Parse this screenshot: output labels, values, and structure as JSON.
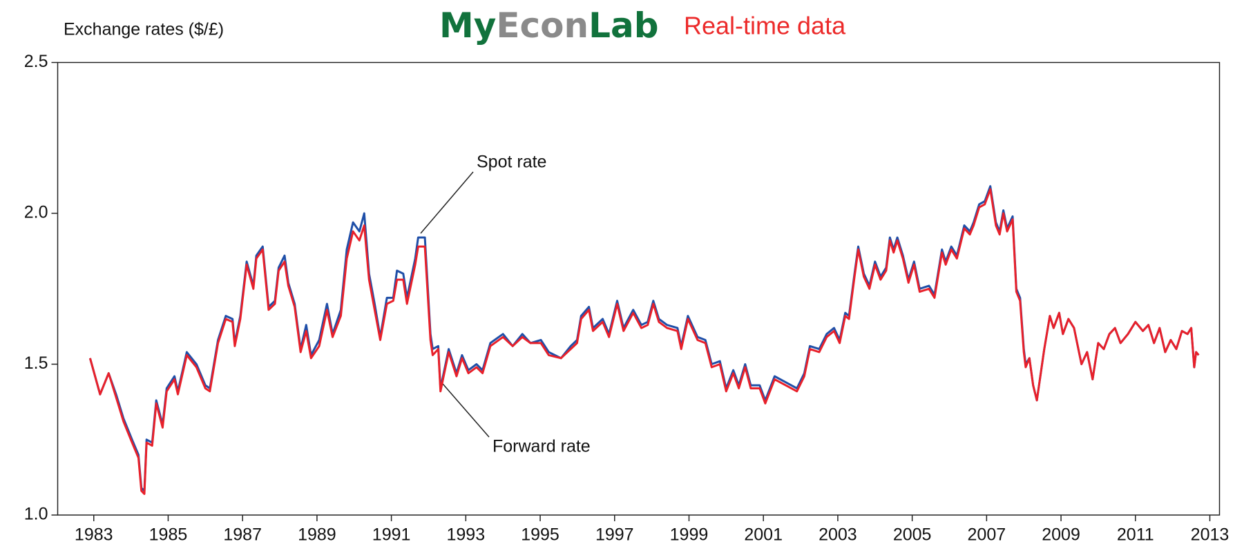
{
  "logo": {
    "parts": [
      "My",
      "Econ",
      "Lab"
    ],
    "tagline": "Real-time data"
  },
  "chart_data": {
    "type": "line",
    "title": "Exchange rates ($/£)",
    "annotations": [
      "Spot rate",
      "Forward rate"
    ],
    "xlim": [
      1982.03,
      2013.26
    ],
    "xticks": [
      1983,
      1985,
      1987,
      1989,
      1991,
      1993,
      1995,
      1997,
      1999,
      2001,
      2003,
      2005,
      2007,
      2009,
      2011,
      2013
    ],
    "ylim": [
      1.0,
      2.5
    ],
    "yticks": [
      {
        "value": 1.0,
        "label": "1.0"
      },
      1.5,
      {
        "value": 2.0,
        "label": "2.0"
      },
      2.5
    ],
    "grid": false,
    "x": [
      1982.9,
      1983.17,
      1983.4,
      1983.6,
      1983.8,
      1984.03,
      1984.2,
      1984.28,
      1984.36,
      1984.42,
      1984.57,
      1984.68,
      1984.85,
      1984.96,
      1985.17,
      1985.26,
      1985.5,
      1985.76,
      1986.0,
      1986.12,
      1986.34,
      1986.55,
      1986.73,
      1986.79,
      1986.94,
      1987.11,
      1987.29,
      1987.37,
      1987.54,
      1987.7,
      1987.87,
      1987.97,
      1988.13,
      1988.23,
      1988.4,
      1988.56,
      1988.71,
      1988.84,
      1989.06,
      1989.27,
      1989.42,
      1989.64,
      1989.8,
      1989.97,
      1990.14,
      1990.27,
      1990.4,
      1990.55,
      1990.7,
      1990.88,
      1991.05,
      1991.15,
      1991.32,
      1991.42,
      1991.64,
      1991.72,
      1991.9,
      1992.05,
      1992.11,
      1992.26,
      1992.32,
      1992.54,
      1992.75,
      1992.9,
      1993.07,
      1993.29,
      1993.45,
      1993.66,
      1994.0,
      1994.26,
      1994.52,
      1994.74,
      1995.02,
      1995.23,
      1995.56,
      1995.82,
      1995.99,
      1996.1,
      1996.31,
      1996.42,
      1996.68,
      1996.85,
      1997.07,
      1997.24,
      1997.5,
      1997.72,
      1997.89,
      1998.04,
      1998.19,
      1998.41,
      1998.69,
      1998.79,
      1998.97,
      1999.23,
      1999.44,
      1999.61,
      1999.83,
      2000.0,
      2000.19,
      2000.34,
      2000.51,
      2000.66,
      2000.9,
      2001.05,
      2001.3,
      2001.6,
      2001.9,
      2002.1,
      2002.25,
      2002.5,
      2002.7,
      2002.9,
      2003.05,
      2003.2,
      2003.3,
      2003.45,
      2003.55,
      2003.7,
      2003.85,
      2004.0,
      2004.15,
      2004.3,
      2004.4,
      2004.5,
      2004.6,
      2004.75,
      2004.9,
      2005.05,
      2005.2,
      2005.45,
      2005.6,
      2005.8,
      2005.9,
      2006.05,
      2006.2,
      2006.4,
      2006.55,
      2006.65,
      2006.8,
      2006.95,
      2007.1,
      2007.25,
      2007.35,
      2007.45,
      2007.55,
      2007.7,
      2007.8,
      2007.9,
      2008.0,
      2008.05,
      2008.15,
      2008.25,
      2008.35,
      2008.55,
      2008.7,
      2008.8,
      2008.95,
      2009.05,
      2009.2,
      2009.35,
      2009.55,
      2009.7,
      2009.85,
      2010.0,
      2010.15,
      2010.3,
      2010.45,
      2010.6,
      2010.8,
      2011.0,
      2011.2,
      2011.35,
      2011.5,
      2011.65,
      2011.8,
      2011.95,
      2012.1,
      2012.25,
      2012.4,
      2012.5,
      2012.58,
      2012.63,
      2012.7
    ],
    "series": [
      {
        "name": "Spot rate",
        "color": "#1f4fa8",
        "values": [
          1.52,
          1.4,
          1.47,
          1.4,
          1.32,
          1.25,
          1.2,
          1.09,
          1.08,
          1.25,
          1.24,
          1.38,
          1.3,
          1.42,
          1.46,
          1.41,
          1.54,
          1.5,
          1.43,
          1.42,
          1.58,
          1.66,
          1.65,
          1.57,
          1.66,
          1.84,
          1.76,
          1.86,
          1.89,
          1.69,
          1.71,
          1.82,
          1.86,
          1.77,
          1.7,
          1.55,
          1.63,
          1.53,
          1.58,
          1.7,
          1.6,
          1.68,
          1.88,
          1.97,
          1.94,
          2.0,
          1.8,
          1.7,
          1.59,
          1.72,
          1.72,
          1.81,
          1.8,
          1.72,
          1.85,
          1.92,
          1.92,
          1.6,
          1.55,
          1.56,
          1.42,
          1.55,
          1.47,
          1.53,
          1.48,
          1.5,
          1.48,
          1.57,
          1.6,
          1.56,
          1.6,
          1.57,
          1.58,
          1.54,
          1.52,
          1.56,
          1.58,
          1.66,
          1.69,
          1.62,
          1.65,
          1.6,
          1.71,
          1.62,
          1.68,
          1.63,
          1.64,
          1.71,
          1.65,
          1.63,
          1.62,
          1.56,
          1.66,
          1.59,
          1.58,
          1.5,
          1.51,
          1.42,
          1.48,
          1.43,
          1.5,
          1.43,
          1.43,
          1.38,
          1.46,
          1.44,
          1.42,
          1.47,
          1.56,
          1.55,
          1.6,
          1.62,
          1.58,
          1.67,
          1.66,
          1.8,
          1.89,
          1.8,
          1.76,
          1.84,
          1.79,
          1.82,
          1.92,
          1.88,
          1.92,
          1.86,
          1.78,
          1.84,
          1.75,
          1.76,
          1.73,
          1.88,
          1.84,
          1.89,
          1.86,
          1.96,
          1.94,
          1.97,
          2.03,
          2.04,
          2.09,
          1.97,
          1.94,
          2.01,
          1.95,
          1.99,
          1.75,
          1.72,
          1.55,
          1.5,
          1.52,
          1.43,
          1.38,
          1.55,
          1.66,
          1.62,
          1.67,
          1.6,
          1.65,
          1.62,
          1.5,
          1.54,
          1.45,
          1.57,
          1.55,
          1.6,
          1.62,
          1.57,
          1.6,
          1.64,
          1.61,
          1.63,
          1.57,
          1.62,
          1.54,
          1.58,
          1.55,
          1.61,
          1.6,
          1.62,
          1.49,
          1.54,
          1.53
        ]
      },
      {
        "name": "Forward rate",
        "color": "#e8202a",
        "values": [
          1.52,
          1.4,
          1.47,
          1.39,
          1.31,
          1.24,
          1.19,
          1.08,
          1.07,
          1.24,
          1.23,
          1.37,
          1.29,
          1.41,
          1.45,
          1.4,
          1.53,
          1.49,
          1.42,
          1.41,
          1.57,
          1.65,
          1.64,
          1.56,
          1.65,
          1.83,
          1.75,
          1.85,
          1.88,
          1.68,
          1.7,
          1.81,
          1.84,
          1.76,
          1.69,
          1.54,
          1.61,
          1.52,
          1.56,
          1.68,
          1.59,
          1.66,
          1.85,
          1.94,
          1.91,
          1.96,
          1.78,
          1.68,
          1.58,
          1.7,
          1.71,
          1.78,
          1.78,
          1.7,
          1.83,
          1.89,
          1.89,
          1.58,
          1.53,
          1.55,
          1.41,
          1.54,
          1.46,
          1.52,
          1.47,
          1.49,
          1.47,
          1.56,
          1.59,
          1.56,
          1.59,
          1.57,
          1.57,
          1.53,
          1.52,
          1.55,
          1.57,
          1.65,
          1.68,
          1.61,
          1.64,
          1.59,
          1.7,
          1.61,
          1.67,
          1.62,
          1.63,
          1.7,
          1.64,
          1.62,
          1.61,
          1.55,
          1.65,
          1.58,
          1.57,
          1.49,
          1.5,
          1.41,
          1.47,
          1.42,
          1.49,
          1.42,
          1.42,
          1.37,
          1.45,
          1.43,
          1.41,
          1.46,
          1.55,
          1.54,
          1.59,
          1.61,
          1.57,
          1.66,
          1.65,
          1.79,
          1.88,
          1.79,
          1.75,
          1.83,
          1.78,
          1.81,
          1.91,
          1.87,
          1.91,
          1.85,
          1.77,
          1.83,
          1.74,
          1.75,
          1.72,
          1.87,
          1.83,
          1.88,
          1.85,
          1.95,
          1.93,
          1.96,
          2.02,
          2.03,
          2.08,
          1.96,
          1.93,
          2.0,
          1.94,
          1.98,
          1.74,
          1.71,
          1.54,
          1.49,
          1.52,
          1.43,
          1.38,
          1.55,
          1.66,
          1.62,
          1.67,
          1.6,
          1.65,
          1.62,
          1.5,
          1.54,
          1.45,
          1.57,
          1.55,
          1.6,
          1.62,
          1.57,
          1.6,
          1.64,
          1.61,
          1.63,
          1.57,
          1.62,
          1.54,
          1.58,
          1.55,
          1.61,
          1.6,
          1.62,
          1.49,
          1.54,
          1.53
        ]
      }
    ]
  }
}
